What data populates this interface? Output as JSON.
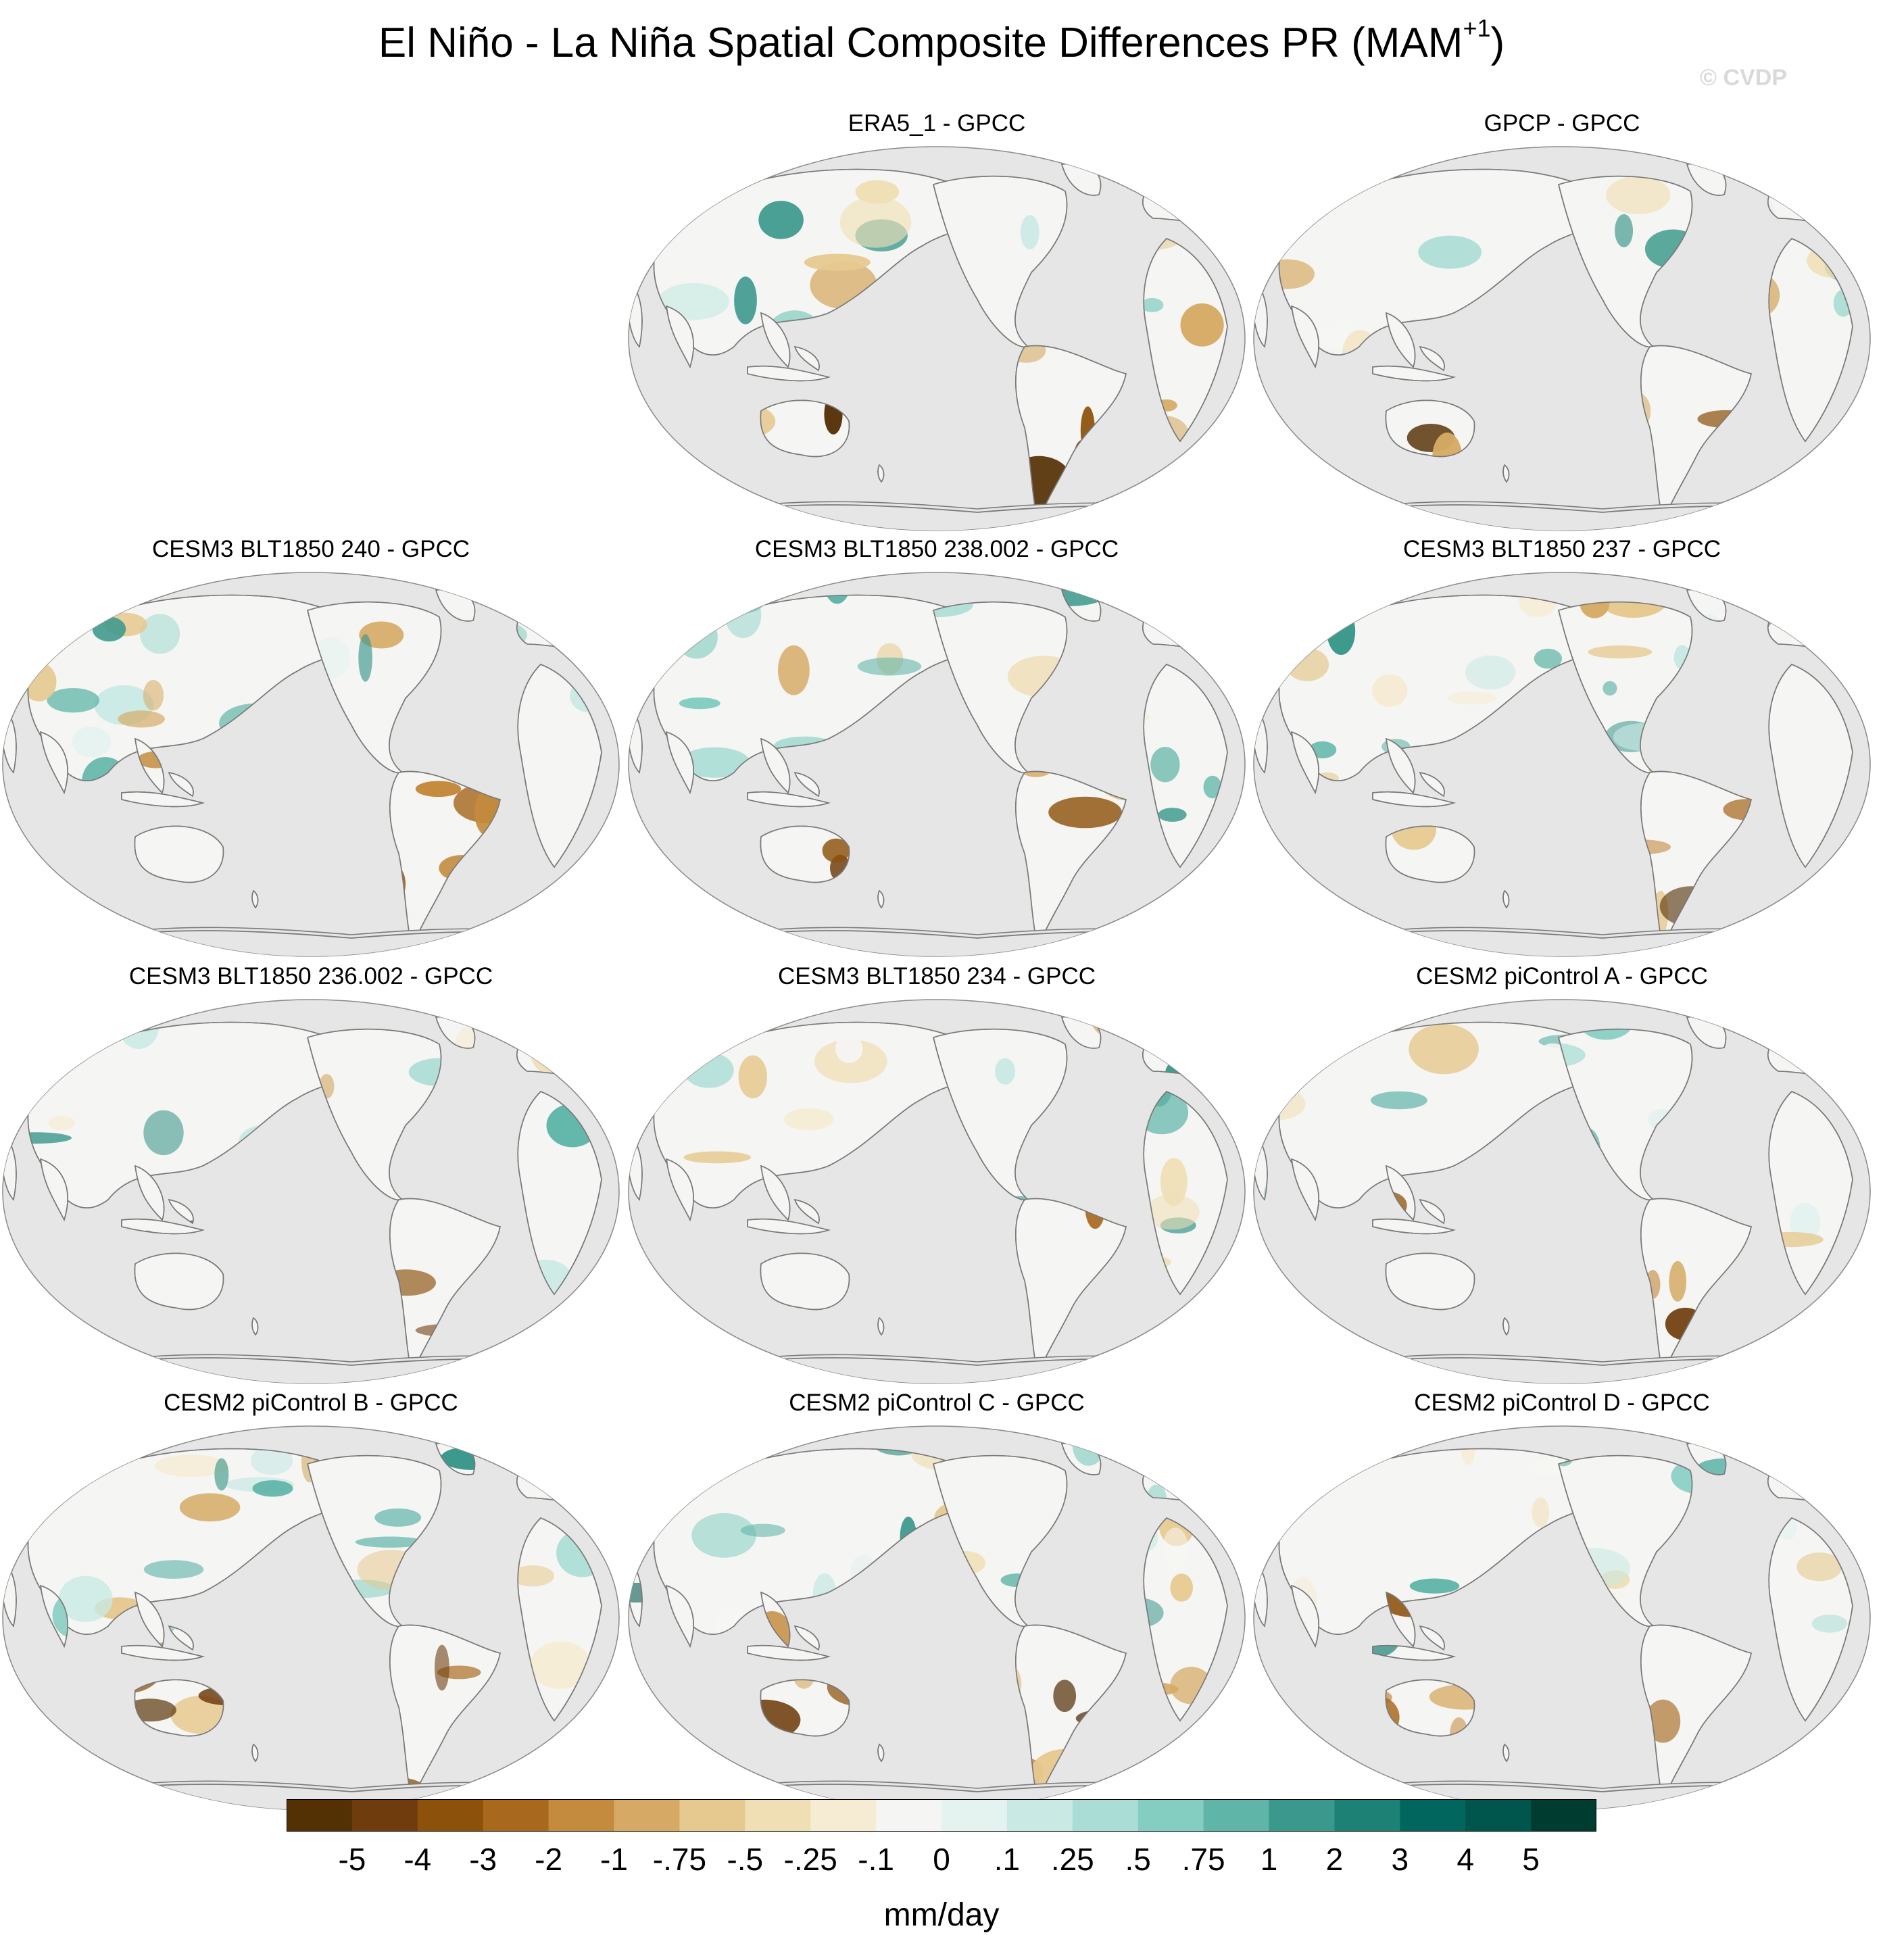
{
  "title": "El Niño - La Niña Spatial Composite Differences PR (MAM",
  "title_sup": "+1",
  "title_end": ")",
  "watermark": "© CVDP",
  "colors": {
    "ocean": "#e6e6e6",
    "coast": "#7a7a7a",
    "scale": [
      "#543005",
      "#6f3d0d",
      "#8c510a",
      "#a8681e",
      "#c48a3d",
      "#d6aa64",
      "#e6c98f",
      "#f0dfb5",
      "#f6ecd4",
      "#f5f5f3",
      "#e4f2f0",
      "#c9e9e4",
      "#a9ddd5",
      "#84cdc1",
      "#5fb5a8",
      "#3b988c",
      "#1e8176",
      "#01665e",
      "#00554c",
      "#003c30"
    ]
  },
  "panels": [
    {
      "title": "ERA5_1 - GPCC"
    },
    {
      "title": "GPCP - GPCC"
    },
    {
      "title": "CESM3 BLT1850 240 - GPCC"
    },
    {
      "title": "CESM3 BLT1850 238.002 - GPCC"
    },
    {
      "title": "CESM3 BLT1850 237 - GPCC"
    },
    {
      "title": "CESM3 BLT1850 236.002 - GPCC"
    },
    {
      "title": "CESM3 BLT1850 234 - GPCC"
    },
    {
      "title": "CESM2 piControl A - GPCC"
    },
    {
      "title": "CESM2 piControl B - GPCC"
    },
    {
      "title": "CESM2 piControl C - GPCC"
    },
    {
      "title": "CESM2 piControl D - GPCC"
    }
  ],
  "colorbar": {
    "labels": [
      "-5",
      "-4",
      "-3",
      "-2",
      "-1",
      "-.75",
      "-.5",
      "-.25",
      "-.1",
      "0",
      ".1",
      ".25",
      ".5",
      ".75",
      "1",
      "2",
      "3",
      "4",
      "5"
    ],
    "units": "mm/day"
  }
}
